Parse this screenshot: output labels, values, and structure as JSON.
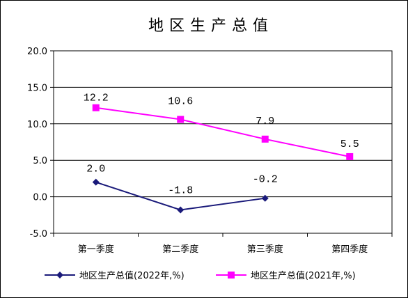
{
  "chart_data": {
    "type": "line",
    "title": "地区生产总值",
    "categories": [
      "第一季度",
      "第二季度",
      "第三季度",
      "第四季度"
    ],
    "ylim": [
      -5,
      20
    ],
    "yticks": [
      "20.0",
      "15.0",
      "10.0",
      "5.0",
      "0.0",
      "-5.0"
    ],
    "ytick_values": [
      20,
      15,
      10,
      5,
      0,
      -5
    ],
    "grid": true,
    "legend_position": "bottom",
    "series": [
      {
        "name": "地区生产总值(2022年,%)",
        "values": [
          2.0,
          -1.8,
          -0.2,
          null
        ],
        "labels": [
          "2.0",
          "-1.8",
          "-0.2",
          ""
        ],
        "color": "#1a1a7a",
        "marker": "diamond"
      },
      {
        "name": "地区生产总值(2021年,%)",
        "values": [
          12.2,
          10.6,
          7.9,
          5.5
        ],
        "labels": [
          "12.2",
          "10.6",
          "7.9",
          "5.5"
        ],
        "color": "#ff00ff",
        "marker": "square"
      }
    ]
  }
}
